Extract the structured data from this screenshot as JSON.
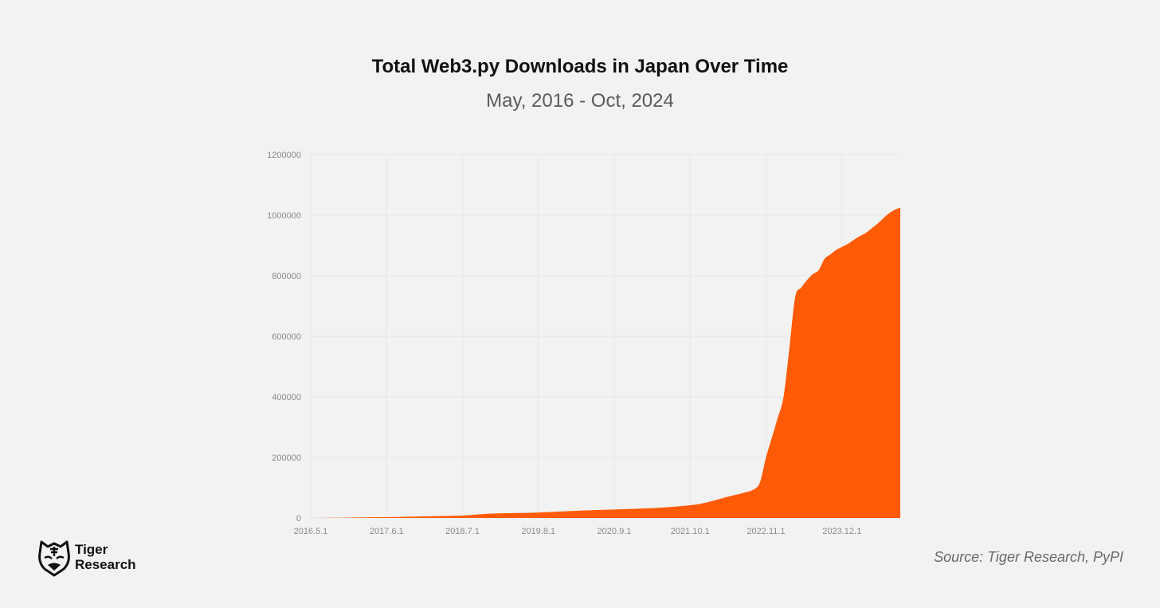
{
  "header": {
    "title": "Total Web3.py Downloads in Japan Over Time",
    "subtitle": "May, 2016 - Oct, 2024"
  },
  "brand": {
    "logo_line1": "Tiger",
    "logo_line2": "Research",
    "logo_icon": "tiger-head-icon"
  },
  "footer": {
    "source": "Source: Tiger Research, PyPI"
  },
  "colors": {
    "area": "#ff5a05",
    "grid": "#e6e6e6",
    "background": "#f2f2f2"
  },
  "chart_data": {
    "type": "area",
    "title": "Total Web3.py Downloads in Japan Over Time",
    "subtitle": "May, 2016 - Oct, 2024",
    "xlabel": "",
    "ylabel": "",
    "x_ticks": [
      "2016.5.1",
      "2017.6.1",
      "2018.7.1",
      "2019.8.1",
      "2020.9.1",
      "2021.10.1",
      "2022.11.1",
      "2023.12.1"
    ],
    "y_ticks": [
      0,
      200000,
      400000,
      600000,
      800000,
      1000000,
      1200000
    ],
    "ylim": [
      0,
      1200000
    ],
    "xlim": [
      "2016.5.1",
      "2024.10.1"
    ],
    "grid": true,
    "legend": "none",
    "series": [
      {
        "x": [
          "2016.5.1",
          "2016.11.1",
          "2017.6.1",
          "2017.12.1",
          "2018.7.1",
          "2018.10.1",
          "2019.1.1",
          "2019.8.1",
          "2020.3.1",
          "2020.9.1",
          "2021.4.1",
          "2021.10.1",
          "2022.1.1",
          "2022.4.1",
          "2022.7.1",
          "2022.9.1",
          "2022.10.1",
          "2022.11.1",
          "2022.12.1",
          "2023.1.1",
          "2023.2.1",
          "2023.3.1",
          "2023.4.1",
          "2023.5.1",
          "2023.6.1",
          "2023.7.1",
          "2023.8.1",
          "2023.9.1",
          "2023.10.1",
          "2023.11.1",
          "2023.12.1",
          "2024.1.1",
          "2024.2.1",
          "2024.3.1",
          "2024.4.1",
          "2024.5.1",
          "2024.6.1",
          "2024.7.1",
          "2024.8.1",
          "2024.9.1",
          "2024.10.1"
        ],
        "y": [
          0,
          1000,
          3000,
          5000,
          8000,
          12000,
          15000,
          18000,
          24000,
          28000,
          33000,
          42000,
          52000,
          68000,
          82000,
          95000,
          120000,
          200000,
          265000,
          330000,
          400000,
          560000,
          730000,
          760000,
          785000,
          805000,
          818000,
          855000,
          870000,
          885000,
          895000,
          905000,
          918000,
          930000,
          940000,
          955000,
          970000,
          988000,
          1005000,
          1017000,
          1025000
        ]
      }
    ]
  }
}
